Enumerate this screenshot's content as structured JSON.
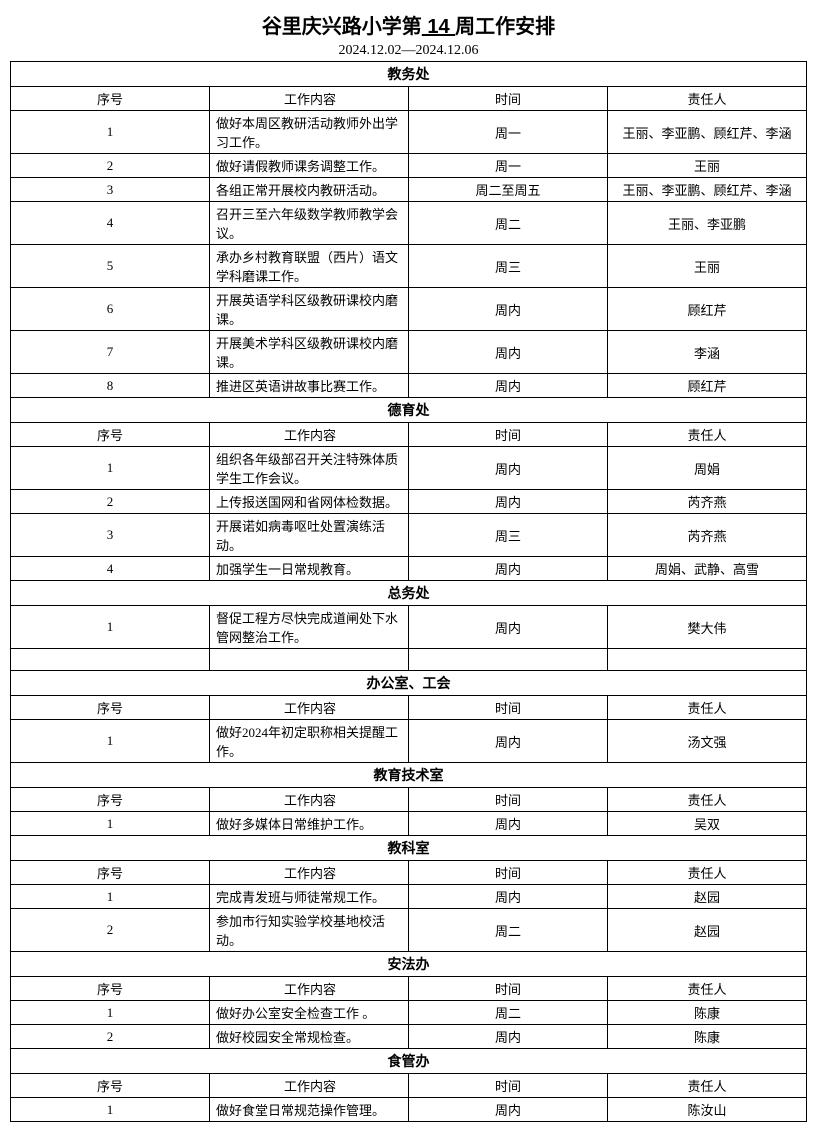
{
  "title_prefix": "谷里庆兴路小学第",
  "title_week": " 14 ",
  "title_suffix": "周工作安排",
  "date_range": "2024.12.02—2024.12.06",
  "headers": {
    "seq": "序号",
    "content": "工作内容",
    "time": "时间",
    "person": "责任人"
  },
  "sections": [
    {
      "name": "教务处",
      "show_header_row": true,
      "rows": [
        {
          "seq": "1",
          "content": "做好本周区教研活动教师外出学习工作。",
          "time": "周一",
          "person": "王丽、李亚鹏、顾红芹、李涵"
        },
        {
          "seq": "2",
          "content": "做好请假教师课务调整工作。",
          "time": "周一",
          "person": "王丽"
        },
        {
          "seq": "3",
          "content": "各组正常开展校内教研活动。",
          "time": "周二至周五",
          "person": "王丽、李亚鹏、顾红芹、李涵"
        },
        {
          "seq": "4",
          "content": "召开三至六年级数学教师教学会议。",
          "time": "周二",
          "person": "王丽、李亚鹏"
        },
        {
          "seq": "5",
          "content": "承办乡村教育联盟（西片）语文学科磨课工作。",
          "time": "周三",
          "person": "王丽"
        },
        {
          "seq": "6",
          "content": "开展英语学科区级教研课校内磨课。",
          "time": "周内",
          "person": "顾红芹"
        },
        {
          "seq": "7",
          "content": "开展美术学科区级教研课校内磨课。",
          "time": "周内",
          "person": "李涵"
        },
        {
          "seq": "8",
          "content": "推进区英语讲故事比赛工作。",
          "time": "周内",
          "person": "顾红芹"
        }
      ]
    },
    {
      "name": "德育处",
      "show_header_row": true,
      "rows": [
        {
          "seq": "1",
          "content": "组织各年级部召开关注特殊体质学生工作会议。",
          "time": "周内",
          "person": "周娟"
        },
        {
          "seq": "2",
          "content": "上传报送国网和省网体检数据。",
          "time": "周内",
          "person": "芮齐燕"
        },
        {
          "seq": "3",
          "content": "开展诺如病毒呕吐处置演练活动。",
          "time": "周三",
          "person": "芮齐燕"
        },
        {
          "seq": "4",
          "content": "加强学生一日常规教育。",
          "time": "周内",
          "person": "周娟、武静、高雪"
        }
      ]
    },
    {
      "name": "总务处",
      "show_header_row": false,
      "rows": [
        {
          "seq": "1",
          "content": "督促工程方尽快完成道闸处下水管网整治工作。",
          "time": "周内",
          "person": "樊大伟"
        }
      ],
      "trailing_blank": true
    },
    {
      "name": "办公室、工会",
      "show_header_row": true,
      "rows": [
        {
          "seq": "1",
          "content": "做好2024年初定职称相关提醒工作。",
          "time": "周内",
          "person": "汤文强"
        }
      ]
    },
    {
      "name": "教育技术室",
      "show_header_row": true,
      "rows": [
        {
          "seq": "1",
          "content": "做好多媒体日常维护工作。",
          "time": "周内",
          "person": "吴双"
        }
      ]
    },
    {
      "name": "教科室",
      "show_header_row": true,
      "rows": [
        {
          "seq": "1",
          "content": "完成青发班与师徒常规工作。",
          "time": "周内",
          "person": "赵园"
        },
        {
          "seq": "2",
          "content": "参加市行知实验学校基地校活动。",
          "time": "周二",
          "person": "赵园"
        }
      ]
    },
    {
      "name": "安法办",
      "show_header_row": true,
      "rows": [
        {
          "seq": "1",
          "content": "做好办公室安全检查工作 。",
          "time": "周二",
          "person": "陈康"
        },
        {
          "seq": "2",
          "content": "做好校园安全常规检查。",
          "time": "周内",
          "person": "陈康"
        }
      ]
    },
    {
      "name": "食管办",
      "show_header_row": true,
      "rows": [
        {
          "seq": "1",
          "content": "做好食堂日常规范操作管理。",
          "time": "周内",
          "person": "陈汝山"
        }
      ]
    }
  ]
}
